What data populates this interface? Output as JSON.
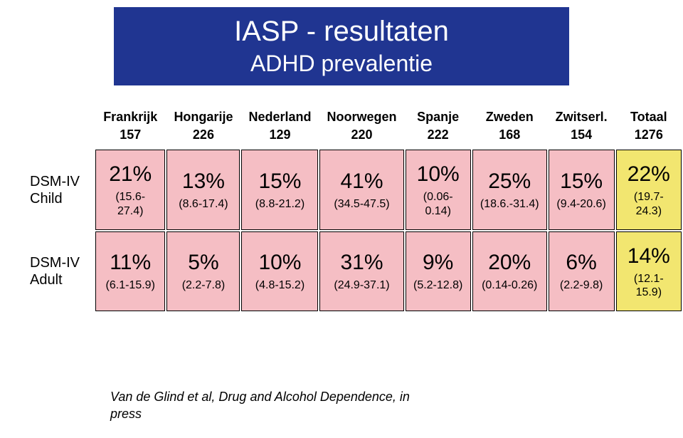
{
  "title": {
    "main": "IASP - resultaten",
    "sub": "ADHD prevalentie",
    "bg": "#203591",
    "fg": "#ffffff"
  },
  "colors": {
    "cell_bg": "#f5bec4",
    "totaal_bg": "#f2e670",
    "grid": "#000000",
    "text": "#000000"
  },
  "columns": [
    {
      "country": "Frankrijk",
      "n": "157"
    },
    {
      "country": "Hongarije",
      "n": "226"
    },
    {
      "country": "Nederland",
      "n": "129"
    },
    {
      "country": "Noorwegen",
      "n": "220"
    },
    {
      "country": "Spanje",
      "n": "222"
    },
    {
      "country": "Zweden",
      "n": "168"
    },
    {
      "country": "Zwitserl.",
      "n": "154"
    },
    {
      "country": "Totaal",
      "n": "1276"
    }
  ],
  "rows": [
    {
      "label": "DSM-IV Child",
      "cells": [
        {
          "pct": "21%",
          "ci": "(15.6-27.4)"
        },
        {
          "pct": "13%",
          "ci": "(8.6-17.4)"
        },
        {
          "pct": "15%",
          "ci": "(8.8-21.2)"
        },
        {
          "pct": "41%",
          "ci": "(34.5-47.5)"
        },
        {
          "pct": "10%",
          "ci": "(0.06-0.14)"
        },
        {
          "pct": "25%",
          "ci": "(18.6.-31.4)"
        },
        {
          "pct": "15%",
          "ci": "(9.4-20.6)"
        },
        {
          "pct": "22%",
          "ci": "(19.7-24.3)"
        }
      ]
    },
    {
      "label": "DSM-IV Adult",
      "cells": [
        {
          "pct": "11%",
          "ci": "(6.1-15.9)"
        },
        {
          "pct": "5%",
          "ci": "(2.2-7.8)"
        },
        {
          "pct": "10%",
          "ci": "(4.8-15.2)"
        },
        {
          "pct": "31%",
          "ci": "(24.9-37.1)"
        },
        {
          "pct": "9%",
          "ci": "(5.2-12.8)"
        },
        {
          "pct": "20%",
          "ci": "(0.14-0.26)"
        },
        {
          "pct": "6%",
          "ci": "(2.2-9.8)"
        },
        {
          "pct": "14%",
          "ci": "(12.1-15.9)"
        }
      ]
    }
  ],
  "citation": {
    "line1": "Van de Glind et al, Drug and Alcohol Dependence, in",
    "line2": "press"
  }
}
